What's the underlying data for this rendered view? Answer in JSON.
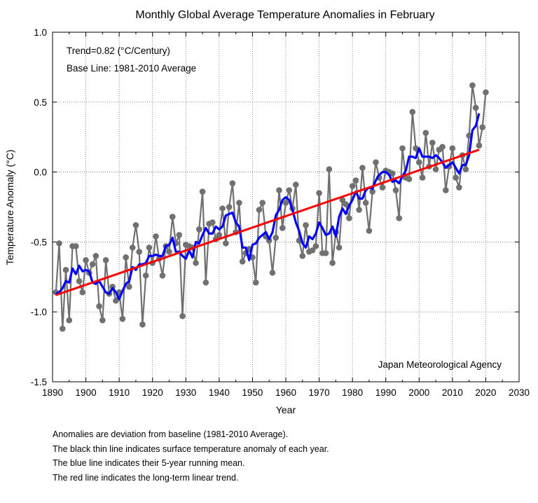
{
  "chart_data": {
    "type": "line",
    "title": "Monthly Global Average Temperature Anomalies in February",
    "xlabel": "Year",
    "ylabel": "Temperature Anomaly (°C)",
    "xlim": [
      1890,
      2030
    ],
    "ylim": [
      -1.5,
      1.0
    ],
    "xticks": [
      1890,
      1900,
      1910,
      1920,
      1930,
      1940,
      1950,
      1960,
      1970,
      1980,
      1990,
      2000,
      2010,
      2020,
      2030
    ],
    "yticks": [
      -1.5,
      -1.0,
      -0.5,
      0.0,
      0.5,
      1.0
    ],
    "xtick_labels": [
      "1890",
      "1900",
      "1910",
      "1920",
      "1930",
      "1940",
      "1950",
      "1960",
      "1970",
      "1980",
      "1990",
      "2000",
      "2010",
      "2020",
      "2030"
    ],
    "ytick_labels": [
      "-1.5",
      "-1.0",
      "-0.5",
      "0.0",
      "0.5",
      "1.0"
    ],
    "grid": true,
    "annotations": [
      "Trend=0.82 (°C/Century)",
      "Base Line: 1981-2010 Average"
    ],
    "credit": "Japan Meteorological Agency",
    "series": [
      {
        "color": "#707070",
        "marker": "circle",
        "x": [
          1891,
          1892,
          1893,
          1894,
          1895,
          1896,
          1897,
          1898,
          1899,
          1900,
          1901,
          1902,
          1903,
          1904,
          1905,
          1906,
          1907,
          1908,
          1909,
          1910,
          1911,
          1912,
          1913,
          1914,
          1915,
          1916,
          1917,
          1918,
          1919,
          1920,
          1921,
          1922,
          1923,
          1924,
          1925,
          1926,
          1927,
          1928,
          1929,
          1930,
          1931,
          1932,
          1933,
          1934,
          1935,
          1936,
          1937,
          1938,
          1939,
          1940,
          1941,
          1942,
          1943,
          1944,
          1945,
          1946,
          1947,
          1948,
          1949,
          1950,
          1951,
          1952,
          1953,
          1954,
          1955,
          1956,
          1957,
          1958,
          1959,
          1960,
          1961,
          1962,
          1963,
          1964,
          1965,
          1966,
          1967,
          1968,
          1969,
          1970,
          1971,
          1972,
          1973,
          1974,
          1975,
          1976,
          1977,
          1978,
          1979,
          1980,
          1981,
          1982,
          1983,
          1984,
          1985,
          1986,
          1987,
          1988,
          1989,
          1990,
          1991,
          1992,
          1993,
          1994,
          1995,
          1996,
          1997,
          1998,
          1999,
          2000,
          2001,
          2002,
          2003,
          2004,
          2005,
          2006,
          2007,
          2008,
          2009,
          2010,
          2011,
          2012,
          2013,
          2014,
          2015,
          2016,
          2017,
          2018,
          2019,
          2020
        ],
        "values": [
          -0.86,
          -0.51,
          -1.12,
          -0.7,
          -1.06,
          -0.53,
          -0.53,
          -0.78,
          -0.86,
          -0.63,
          -0.72,
          -0.66,
          -0.6,
          -0.96,
          -1.06,
          -0.63,
          -0.87,
          -0.82,
          -0.92,
          -0.86,
          -1.05,
          -0.61,
          -0.82,
          -0.54,
          -0.38,
          -0.57,
          -1.09,
          -0.74,
          -0.54,
          -0.65,
          -0.46,
          -0.62,
          -0.74,
          -0.53,
          -0.57,
          -0.32,
          -0.51,
          -0.45,
          -1.03,
          -0.52,
          -0.53,
          -0.54,
          -0.65,
          -0.41,
          -0.14,
          -0.79,
          -0.37,
          -0.36,
          -0.48,
          -0.45,
          -0.26,
          -0.51,
          -0.25,
          -0.08,
          -0.43,
          -0.22,
          -0.64,
          -0.58,
          -0.55,
          -0.61,
          -0.79,
          -0.27,
          -0.22,
          -0.46,
          -0.49,
          -0.72,
          -0.47,
          -0.13,
          -0.4,
          -0.22,
          -0.13,
          -0.26,
          -0.09,
          -0.49,
          -0.6,
          -0.38,
          -0.57,
          -0.56,
          -0.53,
          -0.15,
          -0.58,
          -0.58,
          0.02,
          -0.65,
          -0.43,
          -0.54,
          -0.2,
          -0.23,
          -0.33,
          -0.1,
          -0.06,
          -0.27,
          0.03,
          -0.22,
          -0.42,
          -0.14,
          0.07,
          -0.04,
          -0.11,
          0.01,
          0.0,
          -0.01,
          -0.13,
          -0.33,
          0.17,
          -0.04,
          -0.05,
          0.43,
          0.17,
          0.07,
          -0.04,
          0.28,
          0.04,
          0.21,
          0.02,
          0.16,
          0.18,
          -0.13,
          0.04,
          0.17,
          -0.04,
          -0.11,
          0.12,
          0.02,
          0.26,
          0.62,
          0.46,
          0.19,
          0.32,
          0.57
        ]
      },
      {
        "color": "#0000ff",
        "x": [
          1891,
          1892,
          1893,
          1894,
          1895,
          1896,
          1897,
          1898,
          1899,
          1900,
          1901,
          1902,
          1903,
          1904,
          1905,
          1906,
          1907,
          1908,
          1909,
          1910,
          1911,
          1912,
          1913,
          1914,
          1915,
          1916,
          1917,
          1918,
          1919,
          1920,
          1921,
          1922,
          1923,
          1924,
          1925,
          1926,
          1927,
          1928,
          1929,
          1930,
          1931,
          1932,
          1933,
          1934,
          1935,
          1936,
          1937,
          1938,
          1939,
          1940,
          1941,
          1942,
          1943,
          1944,
          1945,
          1946,
          1947,
          1948,
          1949,
          1950,
          1951,
          1952,
          1953,
          1954,
          1955,
          1956,
          1957,
          1958,
          1959,
          1960,
          1961,
          1962,
          1963,
          1964,
          1965,
          1966,
          1967,
          1968,
          1969,
          1970,
          1971,
          1972,
          1973,
          1974,
          1975,
          1976,
          1977,
          1978,
          1979,
          1980,
          1981,
          1982,
          1983,
          1984,
          1985,
          1986,
          1987,
          1988,
          1989,
          1990,
          1991,
          1992,
          1993,
          1994,
          1995,
          1996,
          1997,
          1998,
          1999,
          2000,
          2001,
          2002,
          2003,
          2004,
          2005,
          2006,
          2007,
          2008,
          2009,
          2010,
          2011,
          2012,
          2013,
          2014,
          2015,
          2016,
          2017,
          2018
        ],
        "values": [
          -0.87,
          -0.86,
          -0.83,
          -0.78,
          -0.79,
          -0.69,
          -0.73,
          -0.67,
          -0.71,
          -0.7,
          -0.71,
          -0.79,
          -0.8,
          -0.78,
          -0.82,
          -0.86,
          -0.87,
          -0.83,
          -0.86,
          -0.91,
          -0.85,
          -0.8,
          -0.78,
          -0.68,
          -0.7,
          -0.66,
          -0.66,
          -0.65,
          -0.6,
          -0.6,
          -0.59,
          -0.6,
          -0.6,
          -0.53,
          -0.52,
          -0.47,
          -0.57,
          -0.57,
          -0.6,
          -0.62,
          -0.56,
          -0.61,
          -0.5,
          -0.51,
          -0.45,
          -0.4,
          -0.44,
          -0.44,
          -0.39,
          -0.41,
          -0.39,
          -0.31,
          -0.3,
          -0.29,
          -0.36,
          -0.39,
          -0.54,
          -0.54,
          -0.63,
          -0.52,
          -0.51,
          -0.47,
          -0.45,
          -0.43,
          -0.48,
          -0.43,
          -0.31,
          -0.27,
          -0.2,
          -0.18,
          -0.2,
          -0.27,
          -0.36,
          -0.42,
          -0.51,
          -0.54,
          -0.46,
          -0.48,
          -0.44,
          -0.36,
          -0.4,
          -0.45,
          -0.44,
          -0.39,
          -0.46,
          -0.32,
          -0.26,
          -0.3,
          -0.24,
          -0.2,
          -0.14,
          -0.19,
          -0.19,
          -0.13,
          -0.11,
          -0.12,
          -0.06,
          -0.02,
          0.0,
          0.0,
          -0.02,
          -0.07,
          -0.06,
          -0.08,
          -0.03,
          0.01,
          0.11,
          0.11,
          0.1,
          0.17,
          0.11,
          0.11,
          0.11,
          0.1,
          0.12,
          0.1,
          0.07,
          0.03,
          0.05,
          0.07,
          0.03,
          -0.01,
          0.05,
          0.05,
          0.12,
          0.3,
          0.33,
          0.42
        ]
      },
      {
        "color": "#ff0000",
        "x": [
          1891,
          2018
        ],
        "values": [
          -0.88,
          0.16
        ]
      }
    ]
  },
  "notes": [
    "Anomalies are deviation from baseline (1981-2010 Average).",
    "The black thin line indicates surface temperature anomaly of each year.",
    "The blue line indicates their 5-year running mean.",
    "The red line indicates the long-term linear trend."
  ]
}
